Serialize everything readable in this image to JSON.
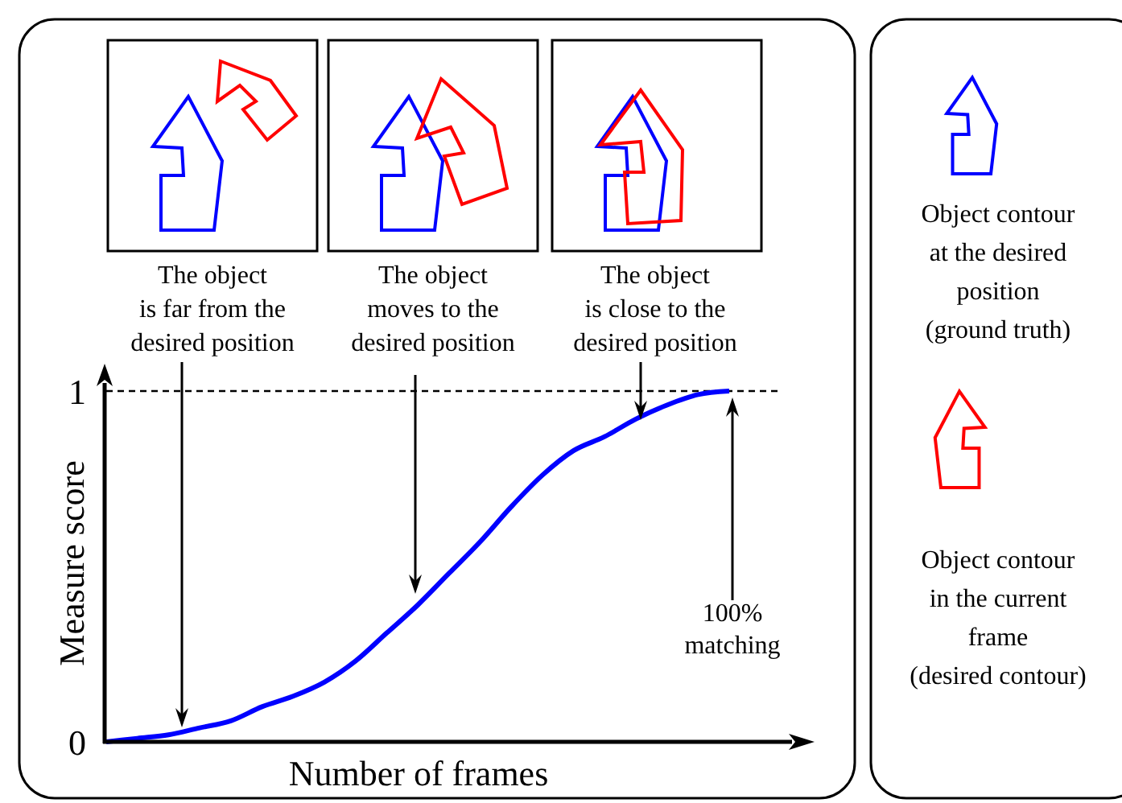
{
  "chart_data": {
    "type": "line",
    "xlabel": "Number of frames",
    "ylabel": "Measure score",
    "categories": [
      null,
      null,
      null,
      null,
      null,
      null,
      null,
      null,
      null,
      null,
      null,
      null,
      null,
      null,
      null,
      null,
      null,
      null,
      null,
      null,
      null
    ],
    "series": [
      {
        "color": "#0000ff",
        "values": [
          0,
          0.01,
          0.02,
          0.04,
          0.06,
          0.1,
          0.13,
          0.17,
          0.23,
          0.31,
          0.39,
          0.48,
          0.57,
          0.67,
          0.76,
          0.83,
          0.87,
          0.92,
          0.96,
          0.99,
          1
        ]
      }
    ],
    "ylim": [
      0,
      1
    ],
    "yticks": [
      0,
      1
    ],
    "marker": "none",
    "line_style": "solid",
    "ref_lines": [
      {
        "axis": "y",
        "value": 1,
        "color": "#000000",
        "line_style": "dashed"
      }
    ],
    "annotations": [
      "The object\nis far from the\ndesired position",
      "The object\nmoves to the\ndesired position",
      "The object\nis close to the\ndesired position",
      "100%\nmatching",
      "Object contour\nat the desired\nposition\n(ground truth)",
      "Object contour\nin the current\nframe\n(desired contour)"
    ]
  }
}
